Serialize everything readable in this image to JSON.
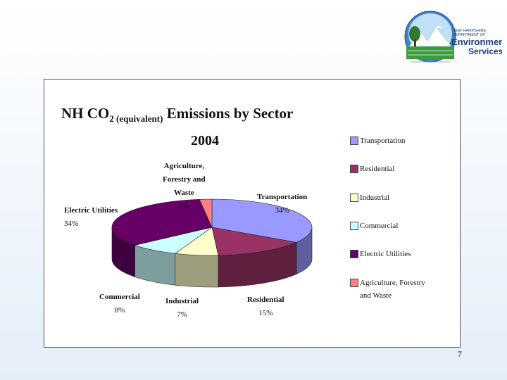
{
  "slide": {
    "page_number": "7"
  },
  "logo": {
    "line1": "NEW HAMPSHIRE",
    "line2": "DEPARTMENT OF",
    "line3": "Environmental",
    "line4": "Services"
  },
  "chart_data": {
    "type": "pie",
    "three_d": true,
    "title": "NH CO",
    "title_subscript": "2 (equivalent)",
    "title_suffix": " Emissions by Sector",
    "year": "2004",
    "legend_position": "right",
    "slices": [
      {
        "label": "Transportation",
        "value": 34,
        "pct_label": "34%",
        "color": "#9999ff"
      },
      {
        "label": "Residential",
        "value": 15,
        "pct_label": "15%",
        "color": "#993366"
      },
      {
        "label": "Industrial",
        "value": 7,
        "pct_label": "7%",
        "color": "#ffffcc"
      },
      {
        "label": "Commercial",
        "value": 8,
        "pct_label": "8%",
        "color": "#ccffff"
      },
      {
        "label": "Electric Utilities",
        "value": 34,
        "pct_label": "34%",
        "color": "#660066"
      },
      {
        "label": "Agriculture, Forestry and Waste",
        "value": 2,
        "pct_label": "2%",
        "color": "#ff8080"
      }
    ],
    "data_labels": [
      {
        "lines": [
          "Transportation"
        ],
        "pct": "34%"
      },
      {
        "lines": [
          "Residential"
        ],
        "pct": "15%"
      },
      {
        "lines": [
          "Industrial"
        ],
        "pct": "7%"
      },
      {
        "lines": [
          "Commercial"
        ],
        "pct": "8%"
      },
      {
        "lines": [
          "Electric Utilities"
        ],
        "pct": "34%"
      },
      {
        "lines": [
          "Agriculture,",
          "Forestry and",
          "Waste"
        ],
        "pct": "2%"
      }
    ],
    "legend": [
      {
        "lines": [
          "Transportation"
        ]
      },
      {
        "lines": [
          "Residential"
        ]
      },
      {
        "lines": [
          "Industrial"
        ]
      },
      {
        "lines": [
          "Commercial"
        ]
      },
      {
        "lines": [
          "Electric Utilities"
        ]
      },
      {
        "lines": [
          "Agriculture, Forestry",
          "and Waste"
        ]
      }
    ]
  }
}
